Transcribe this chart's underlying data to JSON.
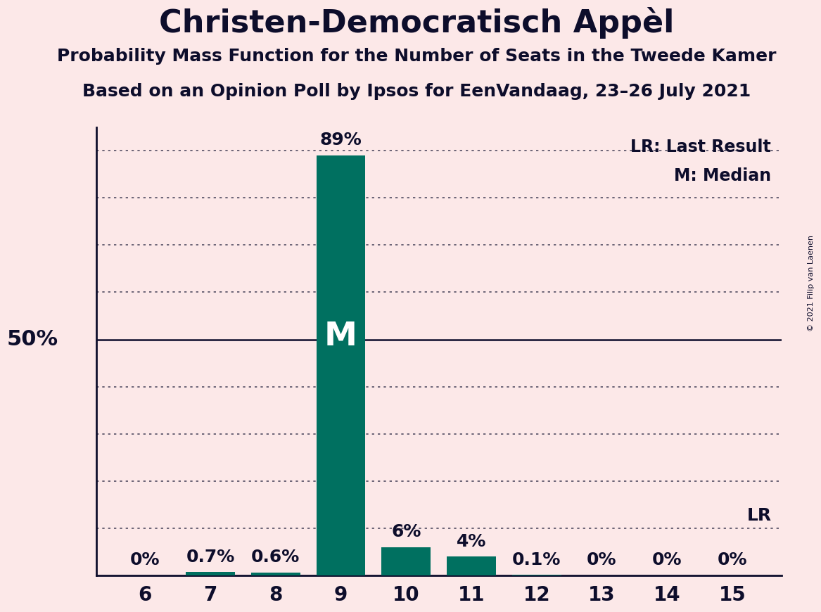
{
  "title": "Christen-Democratisch Appèl",
  "subtitle1": "Probability Mass Function for the Number of Seats in the Tweede Kamer",
  "subtitle2": "Based on an Opinion Poll by Ipsos for EenVandaag, 23–26 July 2021",
  "copyright": "© 2021 Filip van Laenen",
  "seats": [
    6,
    7,
    8,
    9,
    10,
    11,
    12,
    13,
    14,
    15
  ],
  "values": [
    0.0,
    0.7,
    0.6,
    89.0,
    6.0,
    4.0,
    0.1,
    0.0,
    0.0,
    0.0
  ],
  "labels": [
    "0%",
    "0.7%",
    "0.6%",
    "89%",
    "6%",
    "4%",
    "0.1%",
    "0%",
    "0%",
    "0%"
  ],
  "bar_color": "#007060",
  "background_color": "#fce8e8",
  "text_color": "#0d0d2b",
  "median_seat": 9,
  "lr_seat": 15,
  "fifty_pct_line": 50.0,
  "ylim": [
    0,
    95
  ],
  "y50_label": "50%",
  "legend_lr": "LR: Last Result",
  "legend_m": "M: Median"
}
